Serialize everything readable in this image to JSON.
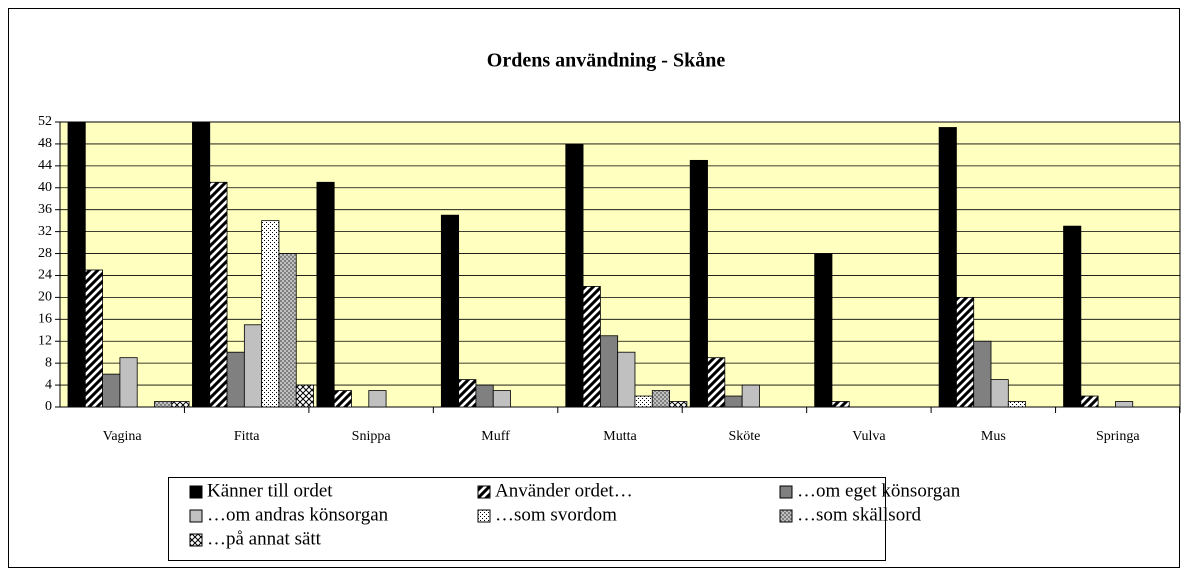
{
  "chart_data": {
    "type": "bar",
    "title": "Ordens användning - Skåne",
    "categories": [
      "Vagina",
      "Fitta",
      "Snippa",
      "Muff",
      "Mutta",
      "Sköte",
      "Vulva",
      "Mus",
      "Springa"
    ],
    "series": [
      {
        "name": "Känner till ordet",
        "color": "#000000",
        "values": [
          52,
          52,
          41,
          35,
          48,
          45,
          28,
          51,
          33
        ]
      },
      {
        "name": "Använder ordet…",
        "color": "#000000",
        "values": [
          25,
          41,
          3,
          5,
          22,
          9,
          1,
          20,
          2
        ]
      },
      {
        "name": "…om eget könsorgan",
        "color": "#808080",
        "values": [
          6,
          10,
          0,
          4,
          13,
          2,
          0,
          12,
          0
        ]
      },
      {
        "name": "…om andras könsorgan",
        "color": "#c0c0c0",
        "values": [
          9,
          15,
          3,
          3,
          10,
          4,
          0,
          5,
          1
        ]
      },
      {
        "name": "…som svordom",
        "color": "#000000",
        "values": [
          0,
          34,
          0,
          0,
          2,
          0,
          0,
          1,
          0
        ]
      },
      {
        "name": "…som skällsord",
        "color": "#808080",
        "values": [
          1,
          28,
          0,
          0,
          3,
          0,
          0,
          0,
          0
        ]
      },
      {
        "name": "…på annat sätt",
        "color": "#000000",
        "values": [
          1,
          4,
          0,
          0,
          1,
          0,
          0,
          0,
          0
        ]
      }
    ],
    "ylim": [
      0,
      52
    ],
    "yticks": [
      0,
      4,
      8,
      12,
      16,
      20,
      24,
      28,
      32,
      36,
      40,
      44,
      48,
      52
    ],
    "grid": true,
    "plot_background": "#ffffc0",
    "legend": "bottom"
  }
}
